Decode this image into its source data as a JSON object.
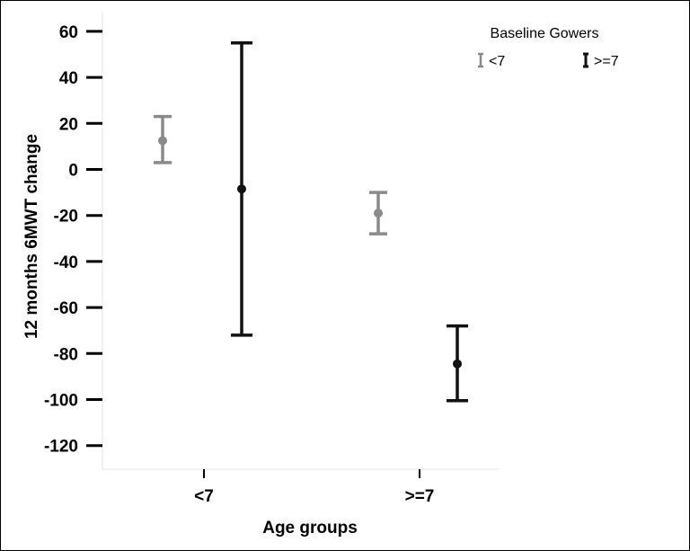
{
  "chart_data": {
    "type": "errorbar",
    "xlabel": "Age groups",
    "ylabel": "12 months 6MWT change",
    "categories": [
      "<7",
      ">=7"
    ],
    "ylim": [
      -130,
      62
    ],
    "yticks": [
      60,
      40,
      20,
      0,
      -20,
      -40,
      -60,
      -80,
      -100,
      -120
    ],
    "ytick_labels": [
      "60",
      "40",
      "20",
      "0",
      "-20",
      "-40",
      "-60",
      "-80",
      "-100",
      "-120"
    ],
    "legend_title": "Baseline Gowers",
    "legend_position": "top-right",
    "grid": false,
    "series": [
      {
        "name": "<7",
        "color": "#8a8a8a",
        "points": [
          {
            "category": "<7",
            "mean": 12.5,
            "lower": 3,
            "upper": 23
          },
          {
            "category": ">=7",
            "mean": -19,
            "lower": -28,
            "upper": -10
          }
        ]
      },
      {
        "name": ">=7",
        "color": "#111111",
        "points": [
          {
            "category": "<7",
            "mean": -8.5,
            "lower": -72,
            "upper": 55
          },
          {
            "category": ">=7",
            "mean": -84.5,
            "lower": -100.5,
            "upper": -68
          }
        ]
      }
    ]
  }
}
